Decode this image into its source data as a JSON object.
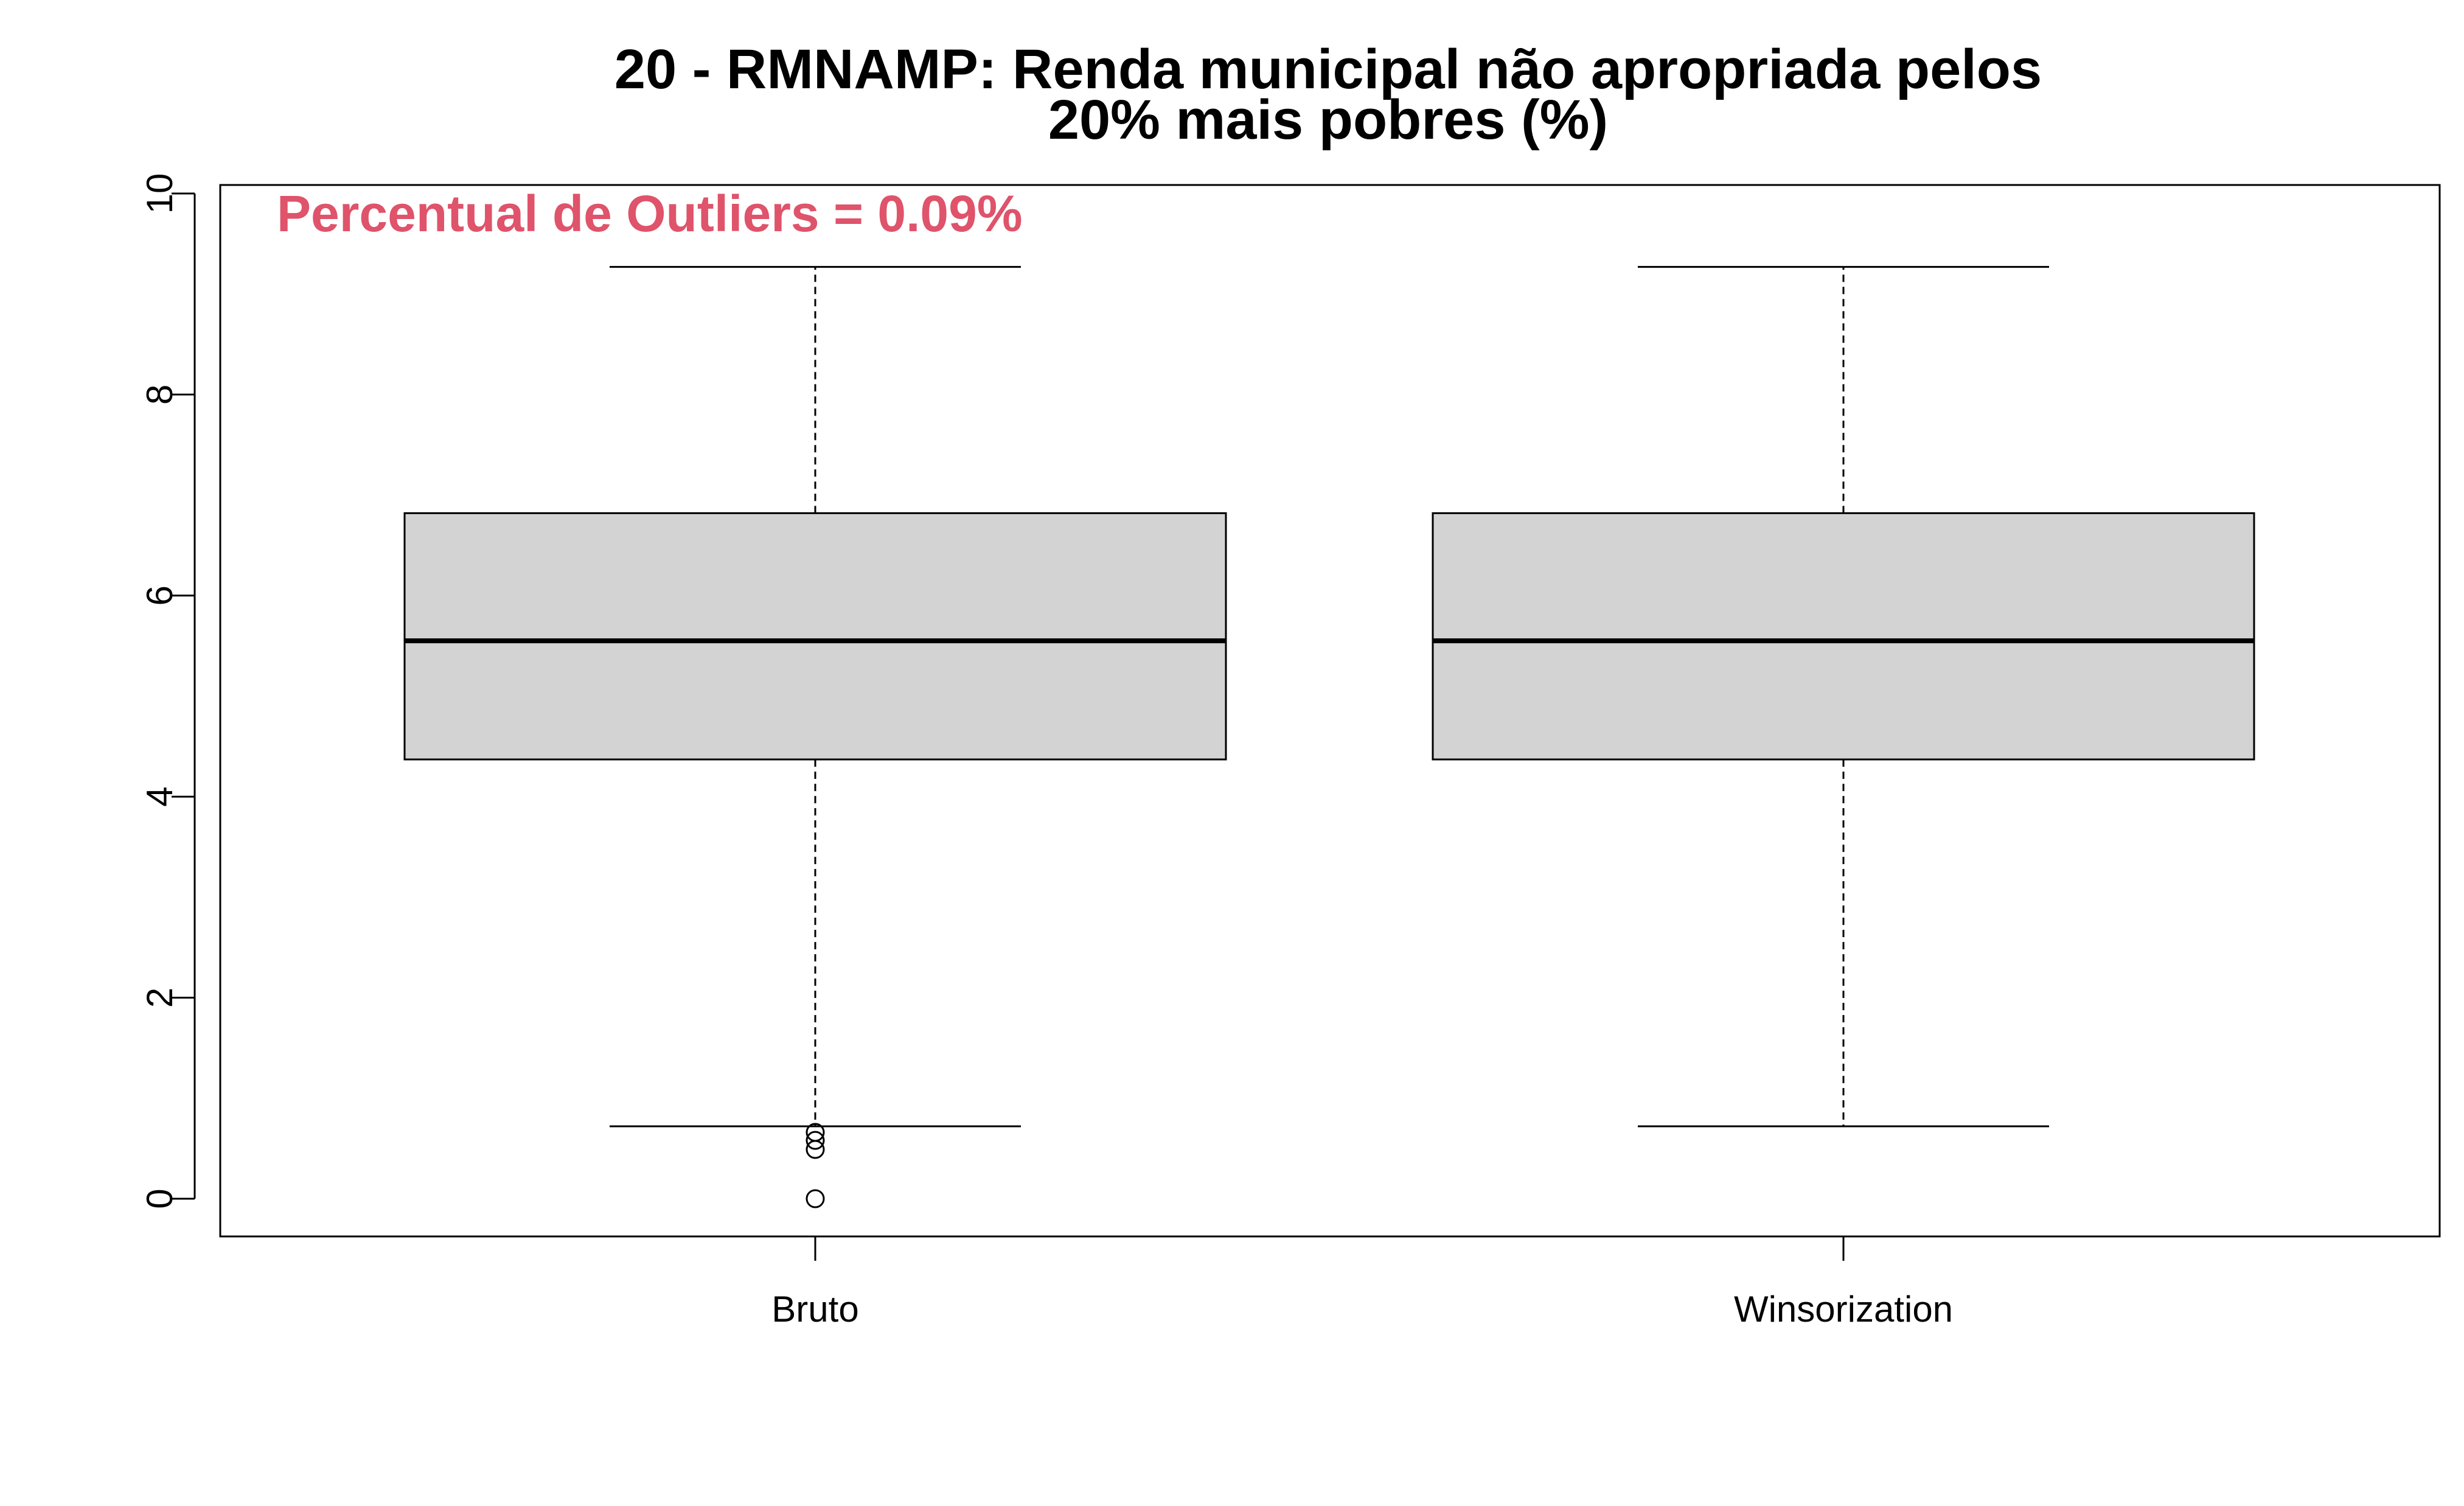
{
  "chart_data": {
    "type": "boxplot",
    "title_lines": [
      "20 - RMNAMP: Renda municipal não apropriada pelos",
      "20% mais pobres (%)"
    ],
    "annotation": {
      "text": "Percentual de Outliers = 0.09%",
      "color": "#DF536B",
      "placement": "top-left"
    },
    "ylim": [
      -0.35,
      10.1
    ],
    "y_ticks": [
      0,
      2,
      4,
      6,
      8,
      10
    ],
    "box_fill": "#D3D3D3",
    "categories": [
      "Bruto",
      "Winsorization"
    ],
    "boxes": [
      {
        "name": "Bruto",
        "whisker_low": 0.72,
        "q1": 4.37,
        "median": 5.55,
        "q3": 6.82,
        "whisker_high": 9.27,
        "outliers": [
          0.0,
          0.49,
          0.58,
          0.66
        ]
      },
      {
        "name": "Winsorization",
        "whisker_low": 0.72,
        "q1": 4.37,
        "median": 5.55,
        "q3": 6.82,
        "whisker_high": 9.27,
        "outliers": []
      }
    ]
  }
}
